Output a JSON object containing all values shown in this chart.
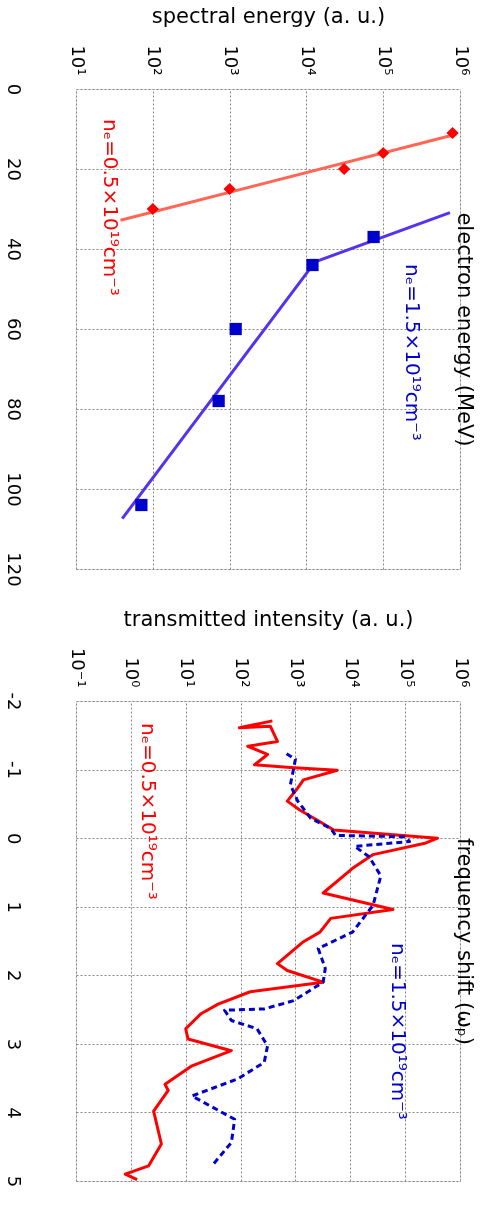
{
  "chart_data": [
    {
      "type": "line",
      "xlabel": "spectral energy (a. u.)",
      "ylabel": "electron energy (MeV)",
      "xlim": [
        10,
        1000000
      ],
      "xticks": [
        {
          "value": 10,
          "label": "10¹"
        },
        {
          "value": 100,
          "label": "10²"
        },
        {
          "value": 1000,
          "label": "10³"
        },
        {
          "value": 10000,
          "label": "10⁴"
        },
        {
          "value": 100000,
          "label": "10⁵"
        },
        {
          "value": 1000000,
          "label": "10⁶"
        }
      ],
      "ylim": [
        120,
        0
      ],
      "yticks": [
        0,
        20,
        40,
        60,
        80,
        100,
        120
      ],
      "log": "x",
      "grid": true,
      "series": [
        {
          "color": "#ff6655",
          "x": [
            38,
            890000
          ],
          "values": [
            32.8,
            11.3
          ],
          "line_style": "solid"
        },
        {
          "type": "scatter",
          "name": "nₑ=0.5×10¹⁹cm⁻³",
          "color": "#ff0000",
          "marker": "diamond",
          "x": [
            100,
            1000,
            31000,
            100000,
            800000
          ],
          "values": [
            30,
            25,
            20,
            16,
            11
          ]
        },
        {
          "color": "#5533ee",
          "x": [
            740000,
            13000,
            40
          ],
          "values": [
            30.9,
            43.2,
            107.4
          ],
          "line_style": "solid"
        },
        {
          "type": "scatter",
          "name": "nₑ=1.5×10¹⁹cm⁻³",
          "color": "#0000cc",
          "marker": "square",
          "x": [
            75000,
            12000,
            1200,
            720,
            71
          ],
          "values": [
            37,
            44,
            60,
            78,
            104
          ]
        }
      ]
    },
    {
      "type": "line",
      "xlabel": "transmitted intensity (a. u.)",
      "ylabel": "frequency shift (ωₚ)",
      "xlim": [
        0.1,
        1000000
      ],
      "xticks": [
        {
          "value": 0.1,
          "label": "10⁻¹"
        },
        {
          "value": 1,
          "label": "10⁰"
        },
        {
          "value": 10,
          "label": "10¹"
        },
        {
          "value": 100,
          "label": "10²"
        },
        {
          "value": 1000,
          "label": "10³"
        },
        {
          "value": 10000,
          "label": "10⁴"
        },
        {
          "value": 100000,
          "label": "10⁵"
        },
        {
          "value": 1000000,
          "label": "10⁶"
        }
      ],
      "ylim": [
        5,
        -2
      ],
      "yticks": [
        -2,
        -1,
        0,
        1,
        2,
        3,
        4,
        5
      ],
      "log": "x",
      "grid": true,
      "series": [
        {
          "name": "nₑ=0.5×10¹⁹cm⁻³",
          "color": "#ff0000",
          "line_style": "solid",
          "values": [
            -1.71,
            -1.61,
            -1.63,
            -1.41,
            -1.34,
            -1.22,
            -1.07,
            -1.03,
            -0.99,
            -0.85,
            -0.73,
            -0.54,
            -0.41,
            -0.24,
            -0.12,
            0.0,
            0.07,
            0.24,
            0.44,
            0.8,
            1.04,
            1.17,
            1.37,
            1.51,
            1.83,
            1.93,
            2.1,
            2.24,
            2.42,
            2.56,
            2.78,
            2.93,
            3.1,
            3.32,
            3.59,
            3.68,
            3.98,
            4.46,
            4.78,
            4.9,
            4.98
          ],
          "x": [
            380,
            95,
            350,
            470,
            135,
            310,
            180,
            810,
            5800,
            1400,
            1100,
            710,
            1200,
            2800,
            5000,
            390000,
            240000,
            26000,
            11000,
            3200,
            60000,
            4400,
            2800,
            1400,
            470,
            710,
            3200,
            150,
            39,
            19,
            10,
            11,
            68,
            13,
            4.2,
            4.8,
            2.6,
            3.6,
            2.1,
            0.79,
            1.3
          ]
        },
        {
          "name": "nₑ=1.5×10¹⁹cm⁻³",
          "color": "#0000cc",
          "line_style": "dashed",
          "values": [
            -1.23,
            -1.15,
            -0.78,
            -0.54,
            -0.29,
            -0.14,
            -0.04,
            -0.02,
            0.05,
            0.12,
            0.27,
            0.55,
            0.98,
            1.37,
            1.61,
            1.9,
            2.1,
            2.37,
            2.49,
            2.51,
            2.66,
            2.78,
            3.03,
            3.27,
            3.51,
            3.76,
            4.1,
            4.44,
            4.78
          ],
          "x": [
            690,
            1000,
            810,
            1100,
            1900,
            4400,
            5400,
            100000,
            120000,
            12000,
            22000,
            36000,
            26000,
            11000,
            2600,
            3500,
            3200,
            930,
            270,
            51,
            68,
            200,
            310,
            270,
            89,
            13,
            78,
            68,
            30
          ]
        }
      ]
    }
  ]
}
